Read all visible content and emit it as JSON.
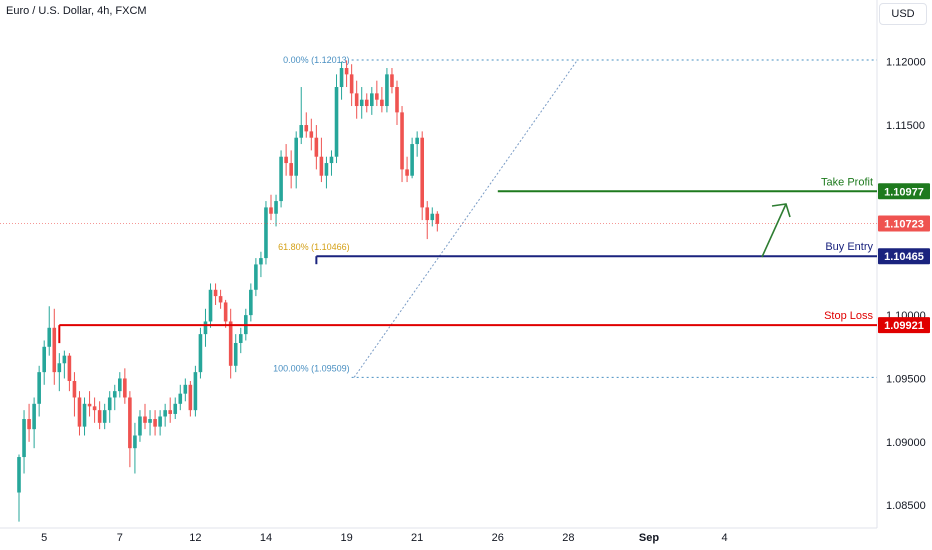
{
  "header": {
    "symbol_title": "Euro / U.S. Dollar, 4h, FXCM",
    "currency_button": "USD"
  },
  "colors": {
    "bull": "#26a69a",
    "bear": "#ef5350",
    "take_profit": "#1e7a1e",
    "buy_entry": "#1a237e",
    "stop_loss": "#e00000",
    "fib": "#4a90c2",
    "fib_61": "#d4a017",
    "arrow": "#2e7d32"
  },
  "chart_data": {
    "type": "candlestick",
    "title": "Euro / U.S. Dollar, 4h, FXCM",
    "ylim": [
      1.0832,
      1.1225
    ],
    "y_ticks": [
      "1.12000",
      "1.11500",
      "1.11000",
      "1.10500",
      "1.10000",
      "1.09500",
      "1.09000",
      "1.08500"
    ],
    "x_ticks": [
      {
        "label": "5",
        "bar": 5
      },
      {
        "label": "7",
        "bar": 20
      },
      {
        "label": "12",
        "bar": 35
      },
      {
        "label": "14",
        "bar": 49
      },
      {
        "label": "19",
        "bar": 65
      },
      {
        "label": "21",
        "bar": 79
      },
      {
        "label": "26",
        "bar": 95
      },
      {
        "label": "28",
        "bar": 109
      },
      {
        "label": "Sep",
        "bar": 125
      },
      {
        "label": "4",
        "bar": 140
      }
    ],
    "ohlc": [
      [
        1.086,
        1.089,
        1.0837,
        1.0888
      ],
      [
        1.0888,
        1.0925,
        1.0875,
        1.0918
      ],
      [
        1.0918,
        1.093,
        1.09,
        1.091
      ],
      [
        1.091,
        1.0935,
        1.0895,
        1.093
      ],
      [
        1.093,
        1.096,
        1.092,
        1.0955
      ],
      [
        1.0955,
        1.098,
        1.0945,
        1.0975
      ],
      [
        1.0975,
        1.1007,
        1.0968,
        1.099
      ],
      [
        1.099,
        1.1005,
        1.0945,
        1.0955
      ],
      [
        1.0955,
        1.097,
        1.094,
        1.0962
      ],
      [
        1.0962,
        1.0972,
        1.095,
        1.0968
      ],
      [
        1.0968,
        1.097,
        1.094,
        1.0948
      ],
      [
        1.0948,
        1.0955,
        1.092,
        1.0935
      ],
      [
        1.0935,
        1.094,
        1.0905,
        1.0912
      ],
      [
        1.0912,
        1.0935,
        1.0905,
        1.093
      ],
      [
        1.093,
        1.094,
        1.092,
        1.0928
      ],
      [
        1.0928,
        1.0935,
        1.0915,
        1.0925
      ],
      [
        1.0925,
        1.0932,
        1.091,
        1.0915
      ],
      [
        1.0915,
        1.093,
        1.091,
        1.0925
      ],
      [
        1.0925,
        1.094,
        1.0915,
        1.0935
      ],
      [
        1.0935,
        1.0945,
        1.0925,
        1.094
      ],
      [
        1.094,
        1.0955,
        1.0935,
        1.095
      ],
      [
        1.095,
        1.0958,
        1.093,
        1.0935
      ],
      [
        1.0935,
        1.094,
        1.088,
        1.0895
      ],
      [
        1.0895,
        1.0915,
        1.0875,
        1.0905
      ],
      [
        1.0905,
        1.0925,
        1.09,
        1.092
      ],
      [
        1.092,
        1.093,
        1.091,
        1.0915
      ],
      [
        1.0915,
        1.0925,
        1.0905,
        1.0918
      ],
      [
        1.0918,
        1.0925,
        1.0905,
        1.0912
      ],
      [
        1.0912,
        1.0925,
        1.0905,
        1.092
      ],
      [
        1.092,
        1.093,
        1.0912,
        1.0925
      ],
      [
        1.0925,
        1.0935,
        1.0915,
        1.0922
      ],
      [
        1.0922,
        1.0935,
        1.0918,
        1.093
      ],
      [
        1.093,
        1.0945,
        1.0925,
        1.0938
      ],
      [
        1.0938,
        1.095,
        1.0932,
        1.0945
      ],
      [
        1.0945,
        1.0948,
        1.092,
        1.0925
      ],
      [
        1.0925,
        1.096,
        1.092,
        1.0955
      ],
      [
        1.0955,
        1.099,
        1.095,
        1.0985
      ],
      [
        1.0985,
        1.1005,
        1.0975,
        1.0995
      ],
      [
        1.0995,
        1.1025,
        1.099,
        1.102
      ],
      [
        1.102,
        1.1025,
        1.1008,
        1.1015
      ],
      [
        1.1015,
        1.102,
        1.1005,
        1.101
      ],
      [
        1.101,
        1.1012,
        1.099,
        1.0995
      ],
      [
        1.0995,
        1.1005,
        1.095,
        1.096
      ],
      [
        1.096,
        1.0985,
        1.0955,
        1.0978
      ],
      [
        1.0978,
        1.099,
        1.097,
        1.0985
      ],
      [
        1.0985,
        1.1005,
        1.098,
        1.1
      ],
      [
        1.1,
        1.1025,
        1.0995,
        1.102
      ],
      [
        1.102,
        1.1045,
        1.1015,
        1.104
      ],
      [
        1.104,
        1.105,
        1.103,
        1.1045
      ],
      [
        1.1045,
        1.109,
        1.104,
        1.1085
      ],
      [
        1.1085,
        1.1095,
        1.1075,
        1.108
      ],
      [
        1.108,
        1.1095,
        1.107,
        1.109
      ],
      [
        1.109,
        1.113,
        1.1085,
        1.1125
      ],
      [
        1.1125,
        1.1135,
        1.111,
        1.112
      ],
      [
        1.112,
        1.113,
        1.11,
        1.111
      ],
      [
        1.111,
        1.1145,
        1.11,
        1.114
      ],
      [
        1.114,
        1.118,
        1.1135,
        1.115
      ],
      [
        1.115,
        1.116,
        1.114,
        1.1145
      ],
      [
        1.1145,
        1.1155,
        1.113,
        1.114
      ],
      [
        1.114,
        1.115,
        1.1115,
        1.1125
      ],
      [
        1.1125,
        1.114,
        1.1105,
        1.111
      ],
      [
        1.111,
        1.1125,
        1.11,
        1.112
      ],
      [
        1.112,
        1.113,
        1.111,
        1.1125
      ],
      [
        1.1125,
        1.119,
        1.112,
        1.118
      ],
      [
        1.118,
        1.12,
        1.117,
        1.1195
      ],
      [
        1.1195,
        1.1201,
        1.118,
        1.119
      ],
      [
        1.119,
        1.1198,
        1.1165,
        1.1175
      ],
      [
        1.1175,
        1.1185,
        1.1155,
        1.1165
      ],
      [
        1.1165,
        1.118,
        1.1155,
        1.117
      ],
      [
        1.117,
        1.1175,
        1.116,
        1.1165
      ],
      [
        1.1165,
        1.118,
        1.1158,
        1.1175
      ],
      [
        1.1175,
        1.1185,
        1.1165,
        1.117
      ],
      [
        1.117,
        1.118,
        1.116,
        1.1165
      ],
      [
        1.1165,
        1.1195,
        1.116,
        1.119
      ],
      [
        1.119,
        1.1195,
        1.1175,
        1.118
      ],
      [
        1.118,
        1.1185,
        1.115,
        1.116
      ],
      [
        1.116,
        1.1165,
        1.1105,
        1.1115
      ],
      [
        1.1115,
        1.1125,
        1.1105,
        1.111
      ],
      [
        1.111,
        1.114,
        1.1108,
        1.1135
      ],
      [
        1.1135,
        1.1145,
        1.1125,
        1.114
      ],
      [
        1.114,
        1.1145,
        1.1075,
        1.1085
      ],
      [
        1.1085,
        1.109,
        1.106,
        1.1075
      ],
      [
        1.1075,
        1.1085,
        1.107,
        1.108
      ],
      [
        1.108,
        1.1082,
        1.1066,
        1.1072
      ]
    ],
    "levels": {
      "take_profit": {
        "label": "Take Profit",
        "value": "1.10977",
        "price": 1.10977
      },
      "current": {
        "value": "1.10723",
        "price": 1.10723
      },
      "buy_entry": {
        "label": "Buy Entry",
        "value": "1.10465",
        "price": 1.10465
      },
      "stop_loss": {
        "label": "Stop Loss",
        "value": "1.09921",
        "price": 1.09921
      }
    },
    "fib": {
      "top_label": "0.00% (1.12013)",
      "top_price": 1.12013,
      "mid_label": "61.80% (1.10466)",
      "mid_price": 1.10466,
      "bottom_label": "100.00% (1.09509)",
      "bottom_price": 1.09509
    }
  }
}
